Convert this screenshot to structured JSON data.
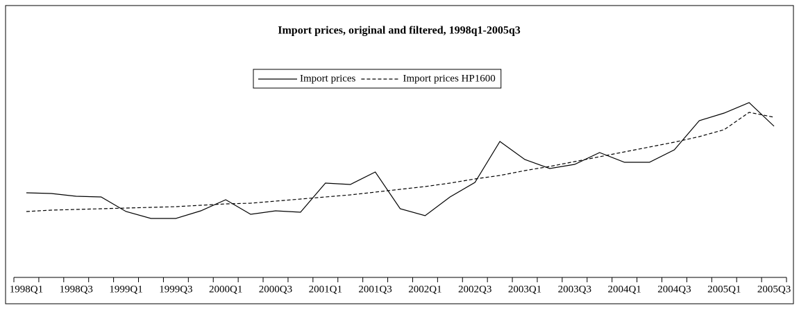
{
  "chart_data": {
    "type": "line",
    "title": "Import prices, original and filtered, 1998q1-2005q3",
    "categories": [
      "1998Q1",
      null,
      "1998Q3",
      null,
      "1999Q1",
      null,
      "1999Q3",
      null,
      "2000Q1",
      null,
      "2000Q3",
      null,
      "2001Q1",
      null,
      "2001Q3",
      null,
      "2002Q1",
      null,
      "2002Q3",
      null,
      "2003Q1",
      null,
      "2003Q3",
      null,
      "2004Q1",
      null,
      "2004Q3",
      null,
      "2005Q1",
      null,
      "2005Q3"
    ],
    "series": [
      {
        "name": "Import prices",
        "color": "#000000",
        "dash": false,
        "values": [
          122,
          121,
          117,
          116,
          95,
          85,
          85,
          96,
          112,
          91,
          96,
          94,
          136,
          134,
          152,
          99,
          89,
          116,
          137,
          196,
          170,
          157,
          163,
          180,
          166,
          166,
          184,
          226,
          237,
          252,
          218
        ]
      },
      {
        "name": "Import prices HP1600",
        "color": "#000000",
        "dash": true,
        "values": [
          95,
          97,
          98,
          99,
          100,
          101,
          102,
          104,
          106,
          107,
          110,
          113,
          116,
          119,
          123,
          127,
          131,
          136,
          142,
          147,
          154,
          160,
          167,
          174,
          181,
          188,
          195,
          203,
          213,
          238,
          231
        ]
      }
    ],
    "ylim": [
      0,
      400
    ],
    "legend": "top"
  }
}
